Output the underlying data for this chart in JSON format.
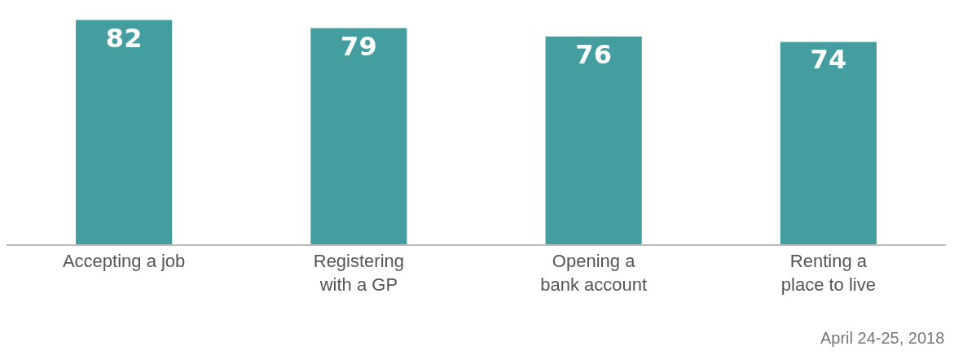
{
  "chart_data": {
    "type": "bar",
    "categories": [
      "Accepting a job",
      "Registering\nwith a GP",
      "Opening a\nbank account",
      "Renting a\nplace to live"
    ],
    "values": [
      82,
      79,
      76,
      74
    ],
    "color": "#449e9f",
    "data_labels": true,
    "grid": false,
    "legend": false,
    "tick_labels": "x",
    "annotations": [
      "April 24-25, 2018"
    ]
  }
}
